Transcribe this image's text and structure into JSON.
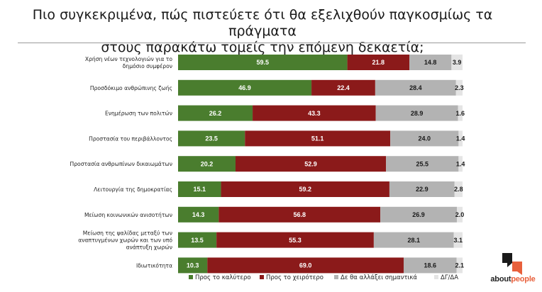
{
  "title_lines": [
    "Πιο συγκεκριμένα, πώς πιστεύετε ότι θα εξελιχθούν παγκοσμίως τα πράγματα",
    "στους παρακάτω τομείς την επόμενη δεκαετία;"
  ],
  "chart_data": {
    "type": "bar",
    "orientation": "horizontal",
    "stacked": true,
    "title": "Πιο συγκεκριμένα, πώς πιστεύετε ότι θα εξελιχθούν παγκοσμίως τα πράγματα στους παρακάτω τομείς την επόμενη δεκαετία;",
    "categories": [
      [
        "Χρήση νέων τεχνολογιών για το",
        "δημόσιο συμφέρον"
      ],
      [
        "Προσδόκιμο ανθρώπινης ζωής"
      ],
      [
        "Ενημέρωση των πολιτών"
      ],
      [
        "Προστασία του περιβάλλοντος"
      ],
      [
        "Προστασία ανθρωπίνων δικαιωμάτων"
      ],
      [
        "Λειτουργία της δημοκρατίας"
      ],
      [
        "Μείωση κοινωνικών ανισοτήτων"
      ],
      [
        "Μείωση της ψαλίδας μεταξύ των",
        "αναπτυγμένων χωρών και των υπό",
        "ανάπτυξη χωρών"
      ],
      [
        "Ιδιωτικότητα"
      ]
    ],
    "series": [
      {
        "name": "Προς το καλύτερο",
        "color": "#4a7d2e",
        "label_color": "#ffffff",
        "values": [
          59.5,
          46.9,
          26.2,
          23.5,
          20.2,
          15.1,
          14.3,
          13.5,
          10.3
        ]
      },
      {
        "name": "Προς το χειρότερο",
        "color": "#8b1a1a",
        "label_color": "#ffffff",
        "values": [
          21.8,
          22.4,
          43.3,
          51.1,
          52.9,
          59.2,
          56.8,
          55.3,
          69.0
        ]
      },
      {
        "name": "Δε θα αλλάξει σημαντικά",
        "color": "#b3b3b3",
        "label_color": "#1a1a1a",
        "values": [
          14.8,
          28.4,
          28.9,
          24.0,
          25.5,
          22.9,
          26.9,
          28.1,
          18.6
        ]
      },
      {
        "name": "ΔΓ/ΔΑ",
        "color": "#e4e4e4",
        "label_color": "#1a1a1a",
        "values": [
          3.9,
          2.3,
          1.6,
          1.4,
          1.4,
          2.8,
          2.0,
          3.1,
          2.1
        ]
      }
    ],
    "xlim": [
      0,
      100
    ],
    "grid": false,
    "legend_position": "bottom"
  },
  "logo": {
    "part1": "about",
    "part2": "people",
    "accent_color": "#e8603c"
  }
}
